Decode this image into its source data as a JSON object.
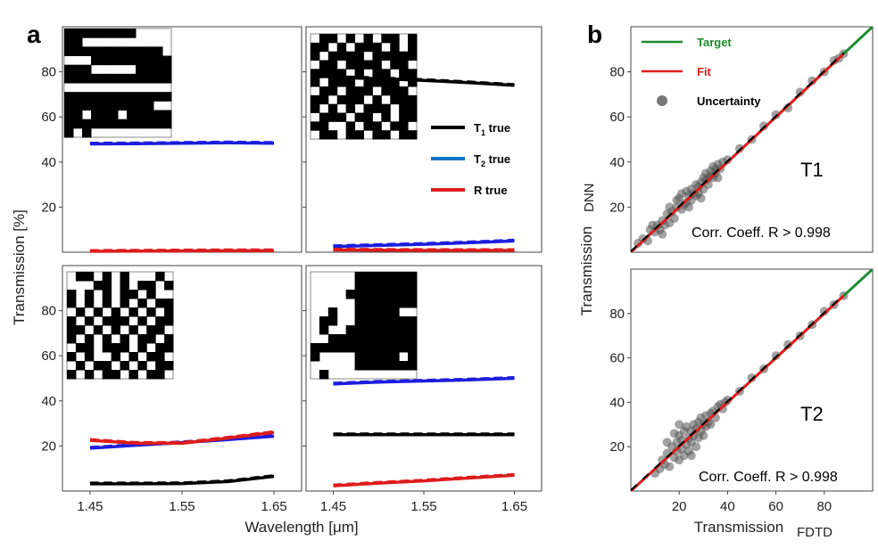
{
  "figure": {
    "panel_a_label": "a",
    "panel_b_label": "b"
  },
  "chart_data": [
    {
      "id": "a-top-left",
      "type": "line",
      "x": [
        1.45,
        1.5,
        1.55,
        1.6,
        1.65
      ],
      "xlim": [
        1.42,
        1.68
      ],
      "ylim": [
        0,
        100
      ],
      "yticks": [
        20,
        40,
        60,
        80
      ],
      "show_yticks": true,
      "show_xticks": false,
      "series": [
        {
          "color": "#1d1ddd",
          "values": [
            48,
            48.1,
            48.3,
            48.5,
            48.3
          ]
        },
        {
          "color": "#dd1c1c",
          "values": [
            0.4,
            0.5,
            0.6,
            0.7,
            0.7
          ]
        }
      ],
      "inset": {
        "corner": "top-left",
        "rows": [
          "111111110000",
          "110000000000",
          "111111111110",
          "000111111111",
          "111000001111",
          "111111111111",
          "000000000000",
          "111111111111",
          "111111111100",
          "110111011111",
          "111111111111",
          "101000000000"
        ]
      }
    },
    {
      "id": "a-top-right",
      "type": "line",
      "x": [
        1.45,
        1.5,
        1.55,
        1.6,
        1.65
      ],
      "xlim": [
        1.42,
        1.68
      ],
      "ylim": [
        0,
        100
      ],
      "yticks": [
        20,
        40,
        60,
        80
      ],
      "show_yticks": false,
      "show_xticks": false,
      "series": [
        {
          "color": "#000000",
          "values": [
            77.5,
            77,
            76.2,
            75.2,
            74
          ]
        },
        {
          "color": "#1d1ddd",
          "values": [
            2.5,
            3,
            3.5,
            4.2,
            5
          ]
        },
        {
          "color": "#dd1c1c",
          "values": [
            1,
            0.9,
            0.8,
            0.8,
            0.8
          ]
        }
      ],
      "legend": [
        {
          "label": "T",
          "sub": "1",
          "rest": " true",
          "color": "#000000"
        },
        {
          "label": "T",
          "sub": "2",
          "rest": " true",
          "color": "#1473c8"
        },
        {
          "label": "R true",
          "sub": "",
          "rest": "",
          "color": "#dd1c1c"
        }
      ],
      "inset": {
        "corner": "top-left",
        "rows": [
          "011010101101",
          "110101110101",
          "101111011111",
          "011011110110",
          "111101011011",
          "101110111101",
          "011011101110",
          "110111010111",
          "101010111011",
          "011101101011",
          "110010110110",
          "011011011011"
        ]
      }
    },
    {
      "id": "a-bottom-left",
      "type": "line",
      "x": [
        1.45,
        1.5,
        1.55,
        1.6,
        1.65
      ],
      "xlim": [
        1.42,
        1.68
      ],
      "ylim": [
        0,
        100
      ],
      "yticks": [
        20,
        40,
        60,
        80
      ],
      "xticks": [
        "1.45",
        "1.55",
        "1.65"
      ],
      "show_yticks": true,
      "show_xticks": true,
      "series": [
        {
          "color": "#1d1ddd",
          "values": [
            19,
            20.3,
            21.5,
            22.8,
            24.3
          ]
        },
        {
          "color": "#dd1c1c",
          "values": [
            22.5,
            21.2,
            21.2,
            23.5,
            26
          ]
        },
        {
          "color": "#000000",
          "values": [
            3.2,
            3.2,
            3.3,
            4.2,
            6.5
          ]
        }
      ],
      "inset": {
        "corner": "top-left",
        "rows": [
          "011010100010",
          "000110101101",
          "101010110100",
          "101010101011",
          "010101010101",
          "101011101011",
          "110101010110",
          "101010101101",
          "011011101011",
          "101001010110",
          "010110101011",
          "101011010110"
        ]
      }
    },
    {
      "id": "a-bottom-right",
      "type": "line",
      "x": [
        1.45,
        1.5,
        1.55,
        1.6,
        1.65
      ],
      "xlim": [
        1.42,
        1.68
      ],
      "ylim": [
        0,
        100
      ],
      "yticks": [
        20,
        40,
        60,
        80
      ],
      "xticks": [
        "1.45",
        "1.55",
        "1.65"
      ],
      "show_yticks": false,
      "show_xticks": true,
      "series": [
        {
          "color": "#1d1ddd",
          "values": [
            47.5,
            48.3,
            48.8,
            49.3,
            50
          ]
        },
        {
          "color": "#000000",
          "values": [
            25,
            25,
            25,
            25,
            25
          ]
        },
        {
          "color": "#dd1c1c",
          "values": [
            2.3,
            3.5,
            4.5,
            5.8,
            7
          ]
        }
      ],
      "inset": {
        "corner": "top-left",
        "rows": [
          "000001111111",
          "000001111111",
          "000011111111",
          "000001111111",
          "001001111100",
          "011001111111",
          "010011111111",
          "001111111111",
          "111111111111",
          "100001111101",
          "000001111111",
          "010000000000"
        ]
      }
    },
    {
      "id": "b-top",
      "type": "scatter",
      "xlim": [
        0,
        100
      ],
      "ylim": [
        0,
        100
      ],
      "yticks": [
        20,
        40,
        60,
        80
      ],
      "show_xticks": false,
      "target_line": {
        "color": "#1e8c2e",
        "from": [
          0,
          0
        ],
        "to": [
          100,
          100
        ]
      },
      "fit_line": {
        "color": "#e01d1d",
        "from": [
          0,
          0
        ],
        "to": [
          88,
          88
        ]
      },
      "points_color": "#555555",
      "points": [
        [
          3,
          4
        ],
        [
          5,
          6
        ],
        [
          7,
          5
        ],
        [
          8,
          10
        ],
        [
          10,
          9
        ],
        [
          11,
          12
        ],
        [
          12,
          10
        ],
        [
          13,
          14
        ],
        [
          14,
          12
        ],
        [
          15,
          17
        ],
        [
          16,
          13
        ],
        [
          17,
          18
        ],
        [
          18,
          15
        ],
        [
          19,
          20
        ],
        [
          19,
          23
        ],
        [
          20,
          24
        ],
        [
          21,
          19
        ],
        [
          21,
          26
        ],
        [
          22,
          21
        ],
        [
          23,
          27
        ],
        [
          23,
          22
        ],
        [
          24,
          25
        ],
        [
          25,
          28
        ],
        [
          25,
          23
        ],
        [
          26,
          26
        ],
        [
          27,
          30
        ],
        [
          27,
          25
        ],
        [
          28,
          29
        ],
        [
          28,
          26
        ],
        [
          29,
          31
        ],
        [
          30,
          28
        ],
        [
          30,
          33
        ],
        [
          31,
          32
        ],
        [
          31,
          35
        ],
        [
          32,
          30
        ],
        [
          33,
          36
        ],
        [
          33,
          34
        ],
        [
          34,
          33
        ],
        [
          34,
          38
        ],
        [
          35,
          37
        ],
        [
          35,
          35
        ],
        [
          36,
          39
        ],
        [
          37,
          37
        ],
        [
          38,
          40
        ],
        [
          36,
          33
        ],
        [
          29,
          24
        ],
        [
          24,
          20
        ],
        [
          16,
          20
        ],
        [
          13,
          8
        ],
        [
          9,
          12
        ],
        [
          32,
          33
        ],
        [
          40,
          41
        ],
        [
          45,
          46
        ],
        [
          50,
          50
        ],
        [
          55,
          56
        ],
        [
          60,
          61
        ],
        [
          65,
          64
        ],
        [
          70,
          71
        ],
        [
          75,
          76
        ],
        [
          80,
          80
        ],
        [
          84,
          85
        ],
        [
          86,
          86
        ],
        [
          88,
          88
        ]
      ],
      "label": "T1",
      "corr_text": "Corr. Coeff. R > 0.998",
      "legend": [
        {
          "label": "Target",
          "color": "#1e8c2e",
          "kind": "line"
        },
        {
          "label": "Fit",
          "color": "#e01d1d",
          "kind": "line"
        },
        {
          "label": "Uncertainty",
          "color": "#555555",
          "kind": "dot"
        }
      ]
    },
    {
      "id": "b-bottom",
      "type": "scatter",
      "xlim": [
        0,
        100
      ],
      "ylim": [
        0,
        100
      ],
      "yticks": [
        20,
        40,
        60,
        80
      ],
      "xticks": [
        "20",
        "40",
        "60",
        "80"
      ],
      "show_xticks": true,
      "target_line": {
        "color": "#1e8c2e",
        "from": [
          0,
          0
        ],
        "to": [
          100,
          100
        ]
      },
      "fit_line": {
        "color": "#e01d1d",
        "from": [
          0,
          0
        ],
        "to": [
          88,
          88
        ]
      },
      "points_color": "#555555",
      "points": [
        [
          10,
          8
        ],
        [
          12,
          10
        ],
        [
          13,
          14
        ],
        [
          14,
          12
        ],
        [
          15,
          17
        ],
        [
          16,
          11
        ],
        [
          17,
          20
        ],
        [
          18,
          15
        ],
        [
          19,
          22
        ],
        [
          19,
          18
        ],
        [
          20,
          25
        ],
        [
          20,
          14
        ],
        [
          21,
          23
        ],
        [
          21,
          19
        ],
        [
          22,
          27
        ],
        [
          22,
          16
        ],
        [
          23,
          21
        ],
        [
          23,
          29
        ],
        [
          24,
          24
        ],
        [
          24,
          18
        ],
        [
          25,
          27
        ],
        [
          25,
          22
        ],
        [
          26,
          30
        ],
        [
          26,
          25
        ],
        [
          27,
          28
        ],
        [
          27,
          20
        ],
        [
          28,
          31
        ],
        [
          28,
          24
        ],
        [
          29,
          27
        ],
        [
          29,
          33
        ],
        [
          30,
          30
        ],
        [
          30,
          25
        ],
        [
          31,
          34
        ],
        [
          31,
          29
        ],
        [
          32,
          31
        ],
        [
          33,
          35
        ],
        [
          33,
          30
        ],
        [
          34,
          36
        ],
        [
          35,
          33
        ],
        [
          36,
          38
        ],
        [
          37,
          39
        ],
        [
          38,
          37
        ],
        [
          39,
          40
        ],
        [
          20,
          30
        ],
        [
          18,
          26
        ],
        [
          25,
          16
        ],
        [
          15,
          22
        ],
        [
          40,
          41
        ],
        [
          45,
          45
        ],
        [
          50,
          51
        ],
        [
          55,
          55
        ],
        [
          60,
          61
        ],
        [
          65,
          66
        ],
        [
          70,
          70
        ],
        [
          75,
          75
        ],
        [
          80,
          81
        ],
        [
          84,
          84
        ],
        [
          88,
          88
        ]
      ],
      "label": "T2",
      "corr_text": "Corr. Coeff. R > 0.998"
    }
  ],
  "axes": {
    "a_ylabel": "Transmission [%]",
    "a_xlabel": "Wavelength [μm]",
    "b_ylabel_main": "Transmission",
    "b_ylabel_sub": "DNN",
    "b_xlabel_main": "Transmission",
    "b_xlabel_sub": "FDTD"
  }
}
